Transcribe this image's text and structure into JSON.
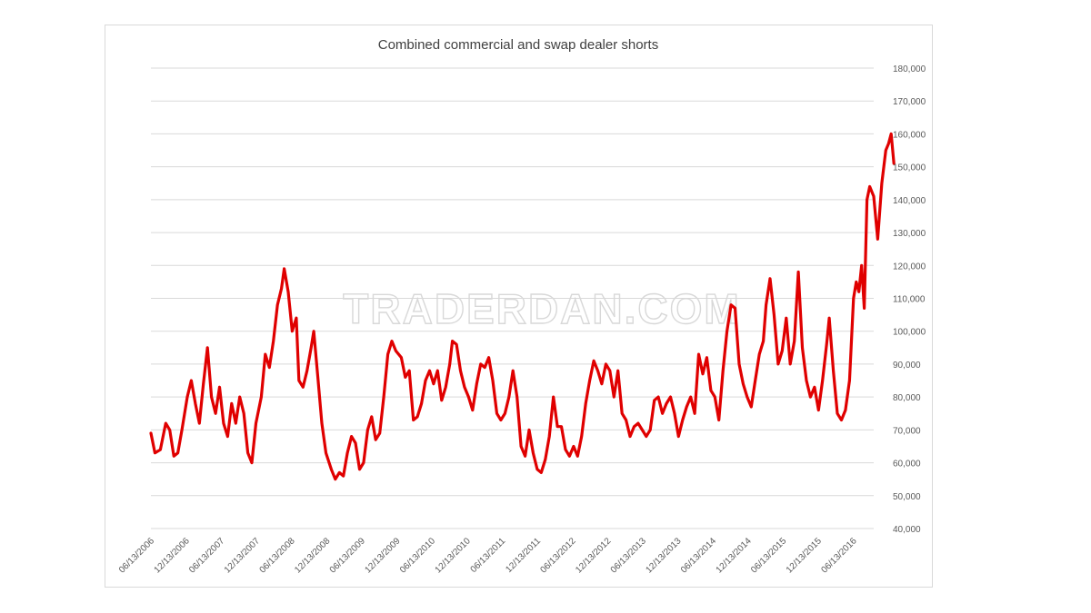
{
  "watermark": "TRADERDAN.COM",
  "colors": {
    "line": "#e00000",
    "grid": "#d9d9d9",
    "text": "#595959"
  },
  "chart_data": {
    "type": "line",
    "title": "Combined commercial and swap dealer shorts",
    "xlabel": "",
    "ylabel": "",
    "ylim": [
      40000,
      180000
    ],
    "ytick_step": 10000,
    "grid": "horizontal",
    "legend": "none",
    "x_start": "2006-06-13",
    "x_end": "2016-09-27",
    "x_tick_labels": [
      "06/13/2006",
      "12/13/2006",
      "06/13/2007",
      "12/13/2007",
      "06/13/2008",
      "12/13/2008",
      "06/13/2009",
      "12/13/2009",
      "06/13/2010",
      "12/13/2010",
      "06/13/2011",
      "12/13/2011",
      "06/13/2012",
      "12/13/2012",
      "06/13/2013",
      "12/13/2013",
      "06/13/2014",
      "12/13/2014",
      "06/13/2015",
      "12/13/2015",
      "06/13/2016"
    ],
    "y_tick_labels": [
      "40,000",
      "50,000",
      "60,000",
      "70,000",
      "80,000",
      "90,000",
      "100,000",
      "110,000",
      "120,000",
      "130,000",
      "140,000",
      "150,000",
      "160,000",
      "170,000",
      "180,000"
    ],
    "series": [
      {
        "values": [
          [
            "2006-06-13",
            69000
          ],
          [
            "2006-07-04",
            63000
          ],
          [
            "2006-08-01",
            64000
          ],
          [
            "2006-08-29",
            72000
          ],
          [
            "2006-09-19",
            70000
          ],
          [
            "2006-10-10",
            62000
          ],
          [
            "2006-10-31",
            63000
          ],
          [
            "2006-11-21",
            70000
          ],
          [
            "2006-12-19",
            80000
          ],
          [
            "2007-01-09",
            85000
          ],
          [
            "2007-01-30",
            78000
          ],
          [
            "2007-02-20",
            72000
          ],
          [
            "2007-03-13",
            84000
          ],
          [
            "2007-04-03",
            95000
          ],
          [
            "2007-04-24",
            80000
          ],
          [
            "2007-05-15",
            75000
          ],
          [
            "2007-06-05",
            83000
          ],
          [
            "2007-06-26",
            72000
          ],
          [
            "2007-07-17",
            68000
          ],
          [
            "2007-08-07",
            78000
          ],
          [
            "2007-08-28",
            72000
          ],
          [
            "2007-09-18",
            80000
          ],
          [
            "2007-10-09",
            75000
          ],
          [
            "2007-10-30",
            63000
          ],
          [
            "2007-11-20",
            60000
          ],
          [
            "2007-12-11",
            72000
          ],
          [
            "2008-01-08",
            80000
          ],
          [
            "2008-01-29",
            93000
          ],
          [
            "2008-02-19",
            89000
          ],
          [
            "2008-03-11",
            97000
          ],
          [
            "2008-04-01",
            108000
          ],
          [
            "2008-04-22",
            113000
          ],
          [
            "2008-05-06",
            119000
          ],
          [
            "2008-05-27",
            112000
          ],
          [
            "2008-06-17",
            100000
          ],
          [
            "2008-07-08",
            104000
          ],
          [
            "2008-07-22",
            85000
          ],
          [
            "2008-08-12",
            83000
          ],
          [
            "2008-09-02",
            88000
          ],
          [
            "2008-09-23",
            95000
          ],
          [
            "2008-10-07",
            100000
          ],
          [
            "2008-10-28",
            86000
          ],
          [
            "2008-11-18",
            72000
          ],
          [
            "2008-12-09",
            63000
          ],
          [
            "2009-01-06",
            58000
          ],
          [
            "2009-01-27",
            55000
          ],
          [
            "2009-02-17",
            57000
          ],
          [
            "2009-03-10",
            56000
          ],
          [
            "2009-03-31",
            63000
          ],
          [
            "2009-04-21",
            68000
          ],
          [
            "2009-05-12",
            66000
          ],
          [
            "2009-06-02",
            58000
          ],
          [
            "2009-06-23",
            60000
          ],
          [
            "2009-07-14",
            70000
          ],
          [
            "2009-08-04",
            74000
          ],
          [
            "2009-08-25",
            67000
          ],
          [
            "2009-09-15",
            69000
          ],
          [
            "2009-10-06",
            80000
          ],
          [
            "2009-10-27",
            93000
          ],
          [
            "2009-11-17",
            97000
          ],
          [
            "2009-12-08",
            94000
          ],
          [
            "2010-01-05",
            92000
          ],
          [
            "2010-01-26",
            86000
          ],
          [
            "2010-02-16",
            88000
          ],
          [
            "2010-03-09",
            73000
          ],
          [
            "2010-03-30",
            74000
          ],
          [
            "2010-04-20",
            78000
          ],
          [
            "2010-05-11",
            85000
          ],
          [
            "2010-06-01",
            88000
          ],
          [
            "2010-06-22",
            84000
          ],
          [
            "2010-07-13",
            88000
          ],
          [
            "2010-08-03",
            79000
          ],
          [
            "2010-08-24",
            83000
          ],
          [
            "2010-09-14",
            90000
          ],
          [
            "2010-09-28",
            97000
          ],
          [
            "2010-10-19",
            96000
          ],
          [
            "2010-11-09",
            88000
          ],
          [
            "2010-11-30",
            83000
          ],
          [
            "2010-12-21",
            80000
          ],
          [
            "2011-01-11",
            76000
          ],
          [
            "2011-02-01",
            84000
          ],
          [
            "2011-02-22",
            90000
          ],
          [
            "2011-03-15",
            89000
          ],
          [
            "2011-04-05",
            92000
          ],
          [
            "2011-04-26",
            85000
          ],
          [
            "2011-05-17",
            75000
          ],
          [
            "2011-06-07",
            73000
          ],
          [
            "2011-06-28",
            75000
          ],
          [
            "2011-07-19",
            80000
          ],
          [
            "2011-08-09",
            88000
          ],
          [
            "2011-08-30",
            80000
          ],
          [
            "2011-09-20",
            65000
          ],
          [
            "2011-10-11",
            62000
          ],
          [
            "2011-11-01",
            70000
          ],
          [
            "2011-11-22",
            63000
          ],
          [
            "2011-12-13",
            58000
          ],
          [
            "2012-01-03",
            57000
          ],
          [
            "2012-01-24",
            61000
          ],
          [
            "2012-02-14",
            68000
          ],
          [
            "2012-03-06",
            80000
          ],
          [
            "2012-03-27",
            71000
          ],
          [
            "2012-04-17",
            71000
          ],
          [
            "2012-05-08",
            64000
          ],
          [
            "2012-05-29",
            62000
          ],
          [
            "2012-06-19",
            65000
          ],
          [
            "2012-07-10",
            62000
          ],
          [
            "2012-07-31",
            68000
          ],
          [
            "2012-08-21",
            78000
          ],
          [
            "2012-09-11",
            85000
          ],
          [
            "2012-10-02",
            91000
          ],
          [
            "2012-10-23",
            88000
          ],
          [
            "2012-11-13",
            84000
          ],
          [
            "2012-12-04",
            90000
          ],
          [
            "2012-12-25",
            88000
          ],
          [
            "2013-01-15",
            80000
          ],
          [
            "2013-02-05",
            88000
          ],
          [
            "2013-02-26",
            75000
          ],
          [
            "2013-03-19",
            73000
          ],
          [
            "2013-04-09",
            68000
          ],
          [
            "2013-04-30",
            71000
          ],
          [
            "2013-05-21",
            72000
          ],
          [
            "2013-06-11",
            70000
          ],
          [
            "2013-07-02",
            68000
          ],
          [
            "2013-07-23",
            70000
          ],
          [
            "2013-08-13",
            79000
          ],
          [
            "2013-09-03",
            80000
          ],
          [
            "2013-09-24",
            75000
          ],
          [
            "2013-10-15",
            78000
          ],
          [
            "2013-11-05",
            80000
          ],
          [
            "2013-11-26",
            75000
          ],
          [
            "2013-12-17",
            68000
          ],
          [
            "2014-01-07",
            73000
          ],
          [
            "2014-01-28",
            77000
          ],
          [
            "2014-02-18",
            80000
          ],
          [
            "2014-03-11",
            75000
          ],
          [
            "2014-04-01",
            93000
          ],
          [
            "2014-04-22",
            87000
          ],
          [
            "2014-05-13",
            92000
          ],
          [
            "2014-06-03",
            82000
          ],
          [
            "2014-06-24",
            80000
          ],
          [
            "2014-07-15",
            73000
          ],
          [
            "2014-08-05",
            88000
          ],
          [
            "2014-08-26",
            100000
          ],
          [
            "2014-09-16",
            108000
          ],
          [
            "2014-10-07",
            107000
          ],
          [
            "2014-10-28",
            90000
          ],
          [
            "2014-11-18",
            84000
          ],
          [
            "2014-12-09",
            80000
          ],
          [
            "2014-12-30",
            77000
          ],
          [
            "2015-01-20",
            85000
          ],
          [
            "2015-02-10",
            93000
          ],
          [
            "2015-03-03",
            97000
          ],
          [
            "2015-03-17",
            108000
          ],
          [
            "2015-04-07",
            116000
          ],
          [
            "2015-04-28",
            105000
          ],
          [
            "2015-05-19",
            90000
          ],
          [
            "2015-06-09",
            94000
          ],
          [
            "2015-06-30",
            104000
          ],
          [
            "2015-07-21",
            90000
          ],
          [
            "2015-08-11",
            97000
          ],
          [
            "2015-09-01",
            118000
          ],
          [
            "2015-09-22",
            95000
          ],
          [
            "2015-10-13",
            85000
          ],
          [
            "2015-11-03",
            80000
          ],
          [
            "2015-11-24",
            83000
          ],
          [
            "2015-12-15",
            76000
          ],
          [
            "2016-01-05",
            85000
          ],
          [
            "2016-01-26",
            96000
          ],
          [
            "2016-02-09",
            104000
          ],
          [
            "2016-03-01",
            88000
          ],
          [
            "2016-03-22",
            75000
          ],
          [
            "2016-04-12",
            73000
          ],
          [
            "2016-05-03",
            76000
          ],
          [
            "2016-05-24",
            85000
          ],
          [
            "2016-06-14",
            110000
          ],
          [
            "2016-06-28",
            115000
          ],
          [
            "2016-07-12",
            112000
          ],
          [
            "2016-07-26",
            120000
          ],
          [
            "2016-08-09",
            107000
          ],
          [
            "2016-08-23",
            140000
          ],
          [
            "2016-09-06",
            144000
          ],
          [
            "2016-09-27",
            141000
          ],
          [
            "2016-10-18",
            128000
          ],
          [
            "2016-11-08",
            145000
          ],
          [
            "2016-11-29",
            155000
          ],
          [
            "2016-12-13",
            157000
          ],
          [
            "2016-12-27",
            160000
          ],
          [
            "2017-01-10",
            151000
          ]
        ]
      }
    ]
  }
}
